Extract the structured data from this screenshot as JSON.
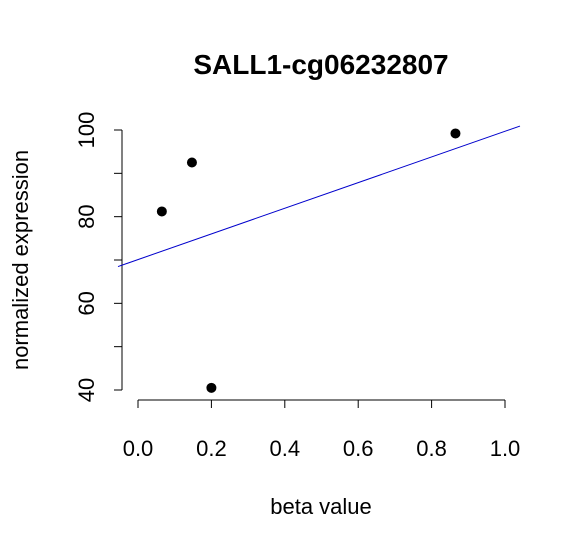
{
  "chart_data": {
    "type": "scatter",
    "title": "SALL1-cg06232807",
    "xlabel": "beta value",
    "ylabel": "normalized expression",
    "xlim": [
      0.0,
      1.0
    ],
    "ylim": [
      40,
      100
    ],
    "x_ticks": [
      "0.0",
      "0.2",
      "0.4",
      "0.6",
      "0.8",
      "1.0"
    ],
    "y_ticks": [
      "40",
      "60",
      "80",
      "100"
    ],
    "grid": false,
    "points": [
      {
        "x": 0.065,
        "y": 81.2
      },
      {
        "x": 0.147,
        "y": 92.5
      },
      {
        "x": 0.2,
        "y": 40.5
      },
      {
        "x": 0.865,
        "y": 99.2
      }
    ],
    "fit_line": {
      "intercept": 70.1,
      "slope": 29.6,
      "color": "#0000cc"
    },
    "point_color": "#000000"
  }
}
